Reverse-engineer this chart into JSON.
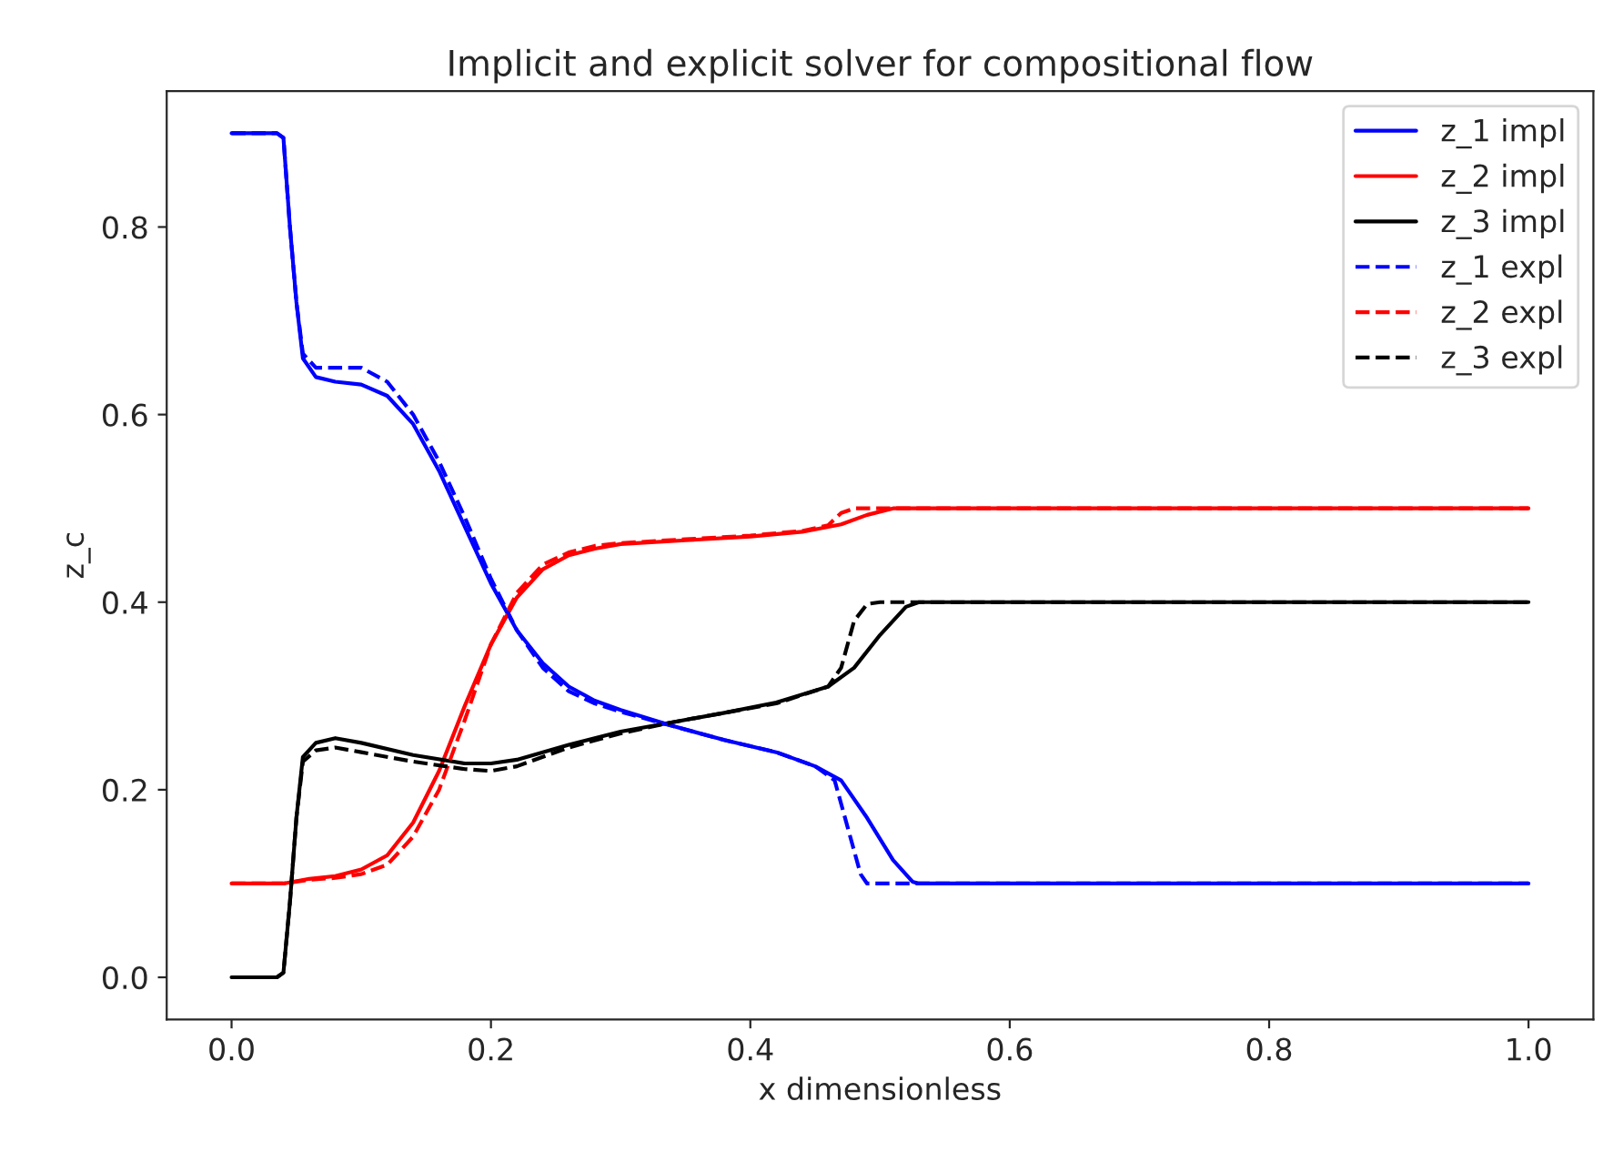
{
  "chart_data": {
    "type": "line",
    "title": "Implicit and explicit solver for compositional flow",
    "xlabel": "x dimensionless",
    "ylabel": "z_c",
    "xlim": [
      -0.05,
      1.05
    ],
    "ylim": [
      -0.045,
      0.945
    ],
    "xticks": [
      {
        "value": 0,
        "label": "0.0"
      },
      0.2,
      0.4,
      0.6,
      0.8,
      {
        "value": 1,
        "label": "1.0"
      }
    ],
    "yticks": [
      {
        "value": 0,
        "label": "0.0"
      },
      0.2,
      0.4,
      0.6,
      0.8
    ],
    "legend": "top right",
    "grid": false,
    "marker": "none",
    "series": [
      {
        "name": "z_1 impl",
        "color": "#0000ff",
        "line_style": "solid",
        "x": [
          0,
          0.035,
          0.04,
          0.045,
          0.05,
          0.055,
          0.065,
          0.08,
          0.1,
          0.12,
          0.14,
          0.16,
          0.18,
          0.2,
          0.22,
          0.24,
          0.26,
          0.28,
          0.3,
          0.34,
          0.38,
          0.42,
          0.45,
          0.47,
          0.49,
          0.51,
          0.525,
          0.53,
          1.0
        ],
        "values": [
          0.9,
          0.9,
          0.895,
          0.8,
          0.72,
          0.66,
          0.64,
          0.635,
          0.632,
          0.62,
          0.59,
          0.54,
          0.48,
          0.42,
          0.37,
          0.335,
          0.31,
          0.295,
          0.285,
          0.268,
          0.253,
          0.24,
          0.225,
          0.21,
          0.17,
          0.125,
          0.102,
          0.1,
          0.1
        ]
      },
      {
        "name": "z_2 impl",
        "color": "#ff0000",
        "line_style": "solid",
        "x": [
          0,
          0.04,
          0.06,
          0.08,
          0.1,
          0.12,
          0.14,
          0.16,
          0.18,
          0.2,
          0.22,
          0.24,
          0.26,
          0.28,
          0.3,
          0.35,
          0.4,
          0.44,
          0.47,
          0.49,
          0.51,
          1.0
        ],
        "values": [
          0.1,
          0.1,
          0.105,
          0.108,
          0.115,
          0.13,
          0.165,
          0.22,
          0.29,
          0.355,
          0.405,
          0.435,
          0.45,
          0.457,
          0.462,
          0.466,
          0.47,
          0.475,
          0.483,
          0.493,
          0.5,
          0.5
        ]
      },
      {
        "name": "z_3 impl",
        "color": "#000000",
        "line_style": "solid",
        "x": [
          0,
          0.035,
          0.04,
          0.045,
          0.05,
          0.055,
          0.065,
          0.08,
          0.1,
          0.14,
          0.18,
          0.2,
          0.22,
          0.26,
          0.3,
          0.34,
          0.38,
          0.42,
          0.46,
          0.48,
          0.5,
          0.52,
          0.53,
          1.0
        ],
        "values": [
          0,
          0,
          0.005,
          0.08,
          0.17,
          0.235,
          0.25,
          0.255,
          0.25,
          0.237,
          0.228,
          0.228,
          0.232,
          0.248,
          0.262,
          0.272,
          0.282,
          0.293,
          0.31,
          0.33,
          0.365,
          0.395,
          0.4,
          0.4
        ]
      },
      {
        "name": "z_1 expl",
        "color": "#0000ff",
        "line_style": "dashed",
        "x": [
          0,
          0.035,
          0.04,
          0.045,
          0.05,
          0.055,
          0.065,
          0.08,
          0.1,
          0.12,
          0.14,
          0.16,
          0.18,
          0.2,
          0.22,
          0.24,
          0.26,
          0.28,
          0.3,
          0.34,
          0.38,
          0.42,
          0.45,
          0.465,
          0.475,
          0.485,
          0.49,
          1.0
        ],
        "values": [
          0.9,
          0.9,
          0.895,
          0.8,
          0.72,
          0.665,
          0.65,
          0.65,
          0.65,
          0.635,
          0.6,
          0.55,
          0.49,
          0.425,
          0.37,
          0.33,
          0.305,
          0.292,
          0.283,
          0.268,
          0.253,
          0.24,
          0.225,
          0.21,
          0.16,
          0.11,
          0.1,
          0.1
        ]
      },
      {
        "name": "z_2 expl",
        "color": "#ff0000",
        "line_style": "dashed",
        "x": [
          0,
          0.04,
          0.06,
          0.08,
          0.1,
          0.12,
          0.14,
          0.16,
          0.18,
          0.2,
          0.22,
          0.24,
          0.26,
          0.28,
          0.3,
          0.35,
          0.4,
          0.44,
          0.46,
          0.47,
          0.48,
          1.0
        ],
        "values": [
          0.1,
          0.1,
          0.104,
          0.106,
          0.11,
          0.12,
          0.15,
          0.2,
          0.275,
          0.355,
          0.41,
          0.44,
          0.453,
          0.46,
          0.463,
          0.467,
          0.471,
          0.476,
          0.482,
          0.495,
          0.5,
          0.5
        ]
      },
      {
        "name": "z_3 expl",
        "color": "#000000",
        "line_style": "dashed",
        "x": [
          0,
          0.035,
          0.04,
          0.045,
          0.05,
          0.055,
          0.065,
          0.08,
          0.1,
          0.14,
          0.18,
          0.2,
          0.22,
          0.26,
          0.3,
          0.34,
          0.38,
          0.42,
          0.46,
          0.47,
          0.48,
          0.49,
          0.5,
          1.0
        ],
        "values": [
          0,
          0,
          0.005,
          0.08,
          0.17,
          0.23,
          0.242,
          0.245,
          0.24,
          0.23,
          0.222,
          0.22,
          0.225,
          0.245,
          0.26,
          0.272,
          0.282,
          0.292,
          0.31,
          0.33,
          0.38,
          0.398,
          0.4,
          0.4
        ]
      }
    ]
  }
}
